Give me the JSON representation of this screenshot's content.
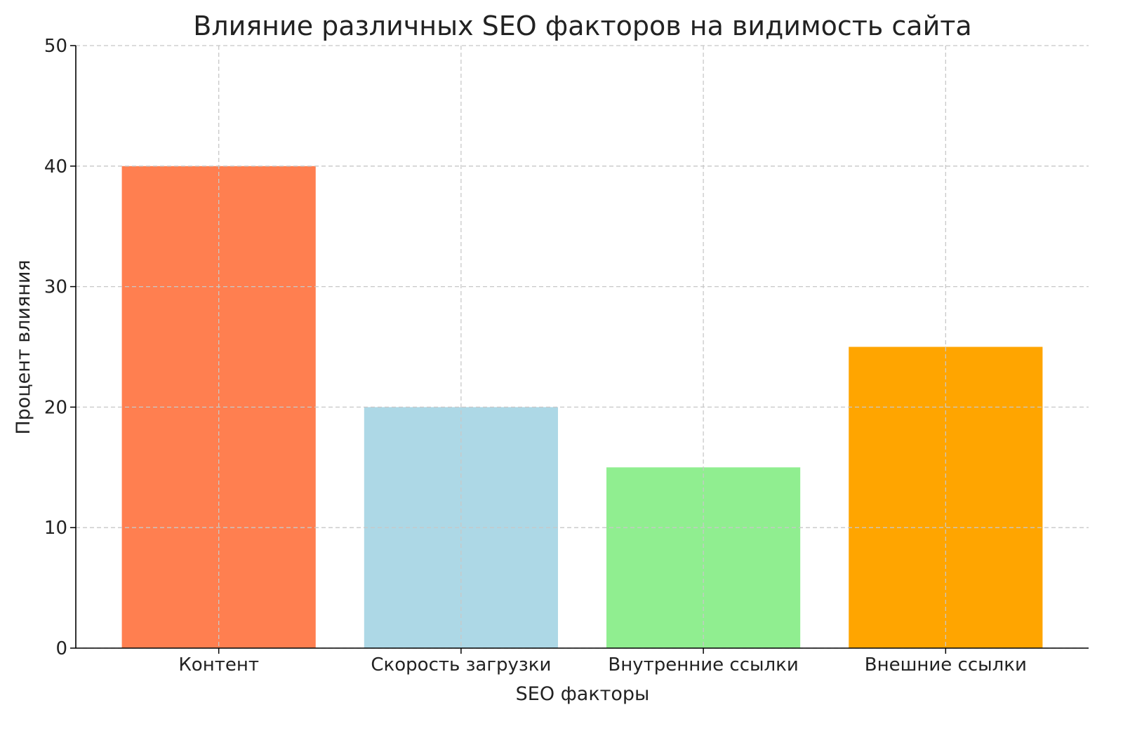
{
  "chart_data": {
    "type": "bar",
    "title": "Влияние различных SEO факторов на видимость сайта",
    "xlabel": "SEO факторы",
    "ylabel": "Процент влияния",
    "categories": [
      "Контент",
      "Скорость загрузки",
      "Внутренние ссылки",
      "Внешние ссылки"
    ],
    "values": [
      40,
      20,
      15,
      25
    ],
    "colors": [
      "#FF7F50",
      "#ADD8E6",
      "#90EE90",
      "#FFA500"
    ],
    "ylim": [
      0,
      50
    ],
    "yticks": [
      "0",
      "10",
      "20",
      "30",
      "40",
      "50"
    ],
    "grid": true
  }
}
